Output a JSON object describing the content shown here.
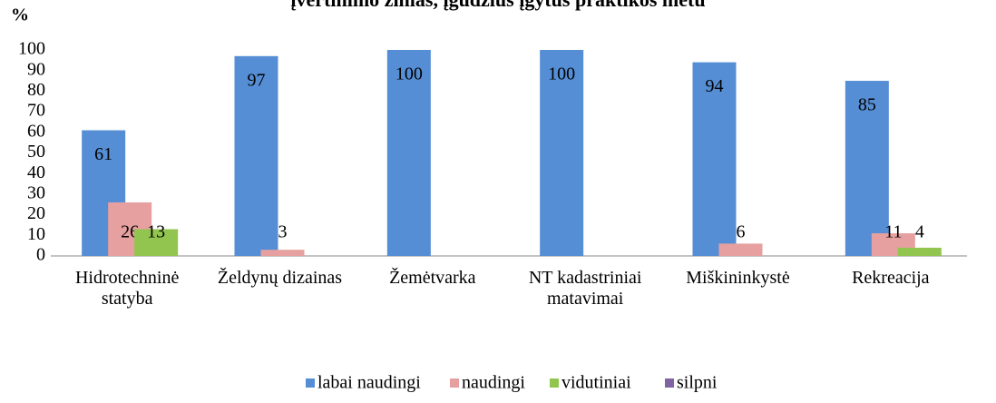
{
  "chart_data": {
    "type": "bar",
    "title": "įvertinimo žinias, įgūdžius įgytus praktikos metu",
    "y_label": "%",
    "categories": [
      "Hidrotechninė statyba",
      "Želdynų dizainas",
      "Žemėtvarka",
      "NT kadastriniai matavimai",
      "Miškininkystė",
      "Rekreacija"
    ],
    "series": [
      {
        "name": "labai naudingi",
        "color": "#558ed5",
        "values": [
          61,
          97,
          100,
          100,
          94,
          85
        ]
      },
      {
        "name": "naudingi",
        "color": "#e6a0a0",
        "values": [
          26,
          3,
          null,
          null,
          6,
          11
        ]
      },
      {
        "name": "vidutiniai",
        "color": "#92c550",
        "values": [
          13,
          null,
          null,
          null,
          null,
          4
        ]
      },
      {
        "name": "silpni",
        "color": "#8064a2",
        "values": [
          null,
          null,
          null,
          null,
          null,
          null
        ]
      }
    ],
    "ylim": [
      0,
      100
    ],
    "yticks": [
      0,
      10,
      20,
      30,
      40,
      50,
      60,
      70,
      80,
      90,
      100
    ],
    "grid": false,
    "legend": "bottom"
  }
}
